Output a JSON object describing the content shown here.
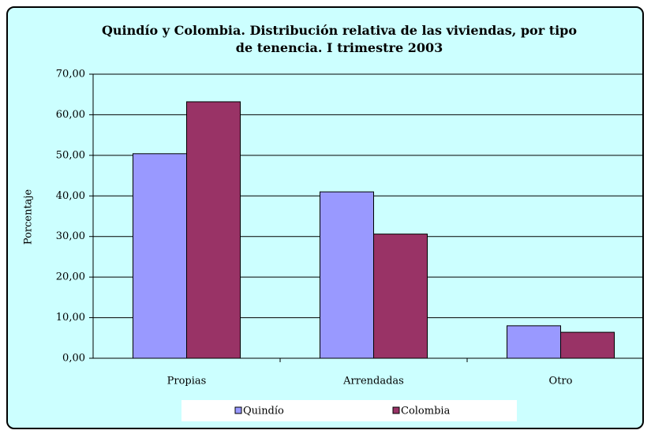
{
  "chart_data": {
    "type": "bar",
    "title": "Quindío y Colombia. Distribución relativa de las viviendas, por tipo de tenencia. I trimestre 2003",
    "y_label": "Porcentaje",
    "categories": [
      "Propias",
      "Arrendadas",
      "Otro"
    ],
    "series": [
      {
        "name": "Quindío",
        "color": "#9999ff",
        "values": [
          50.4,
          41.0,
          8.0
        ]
      },
      {
        "name": "Colombia",
        "color": "#993366",
        "values": [
          63.2,
          30.6,
          6.4
        ]
      }
    ],
    "ylim": [
      0,
      70
    ],
    "yticks": [
      {
        "value": 0,
        "label": "0,00"
      },
      {
        "value": 10,
        "label": "10,00"
      },
      {
        "value": 20,
        "label": "20,00"
      },
      {
        "value": 30,
        "label": "30,00"
      },
      {
        "value": 40,
        "label": "40,00"
      },
      {
        "value": 50,
        "label": "50,00"
      },
      {
        "value": 60,
        "label": "60,00"
      },
      {
        "value": 70,
        "label": "70,00"
      }
    ],
    "grid": true,
    "legend": "bottom"
  }
}
